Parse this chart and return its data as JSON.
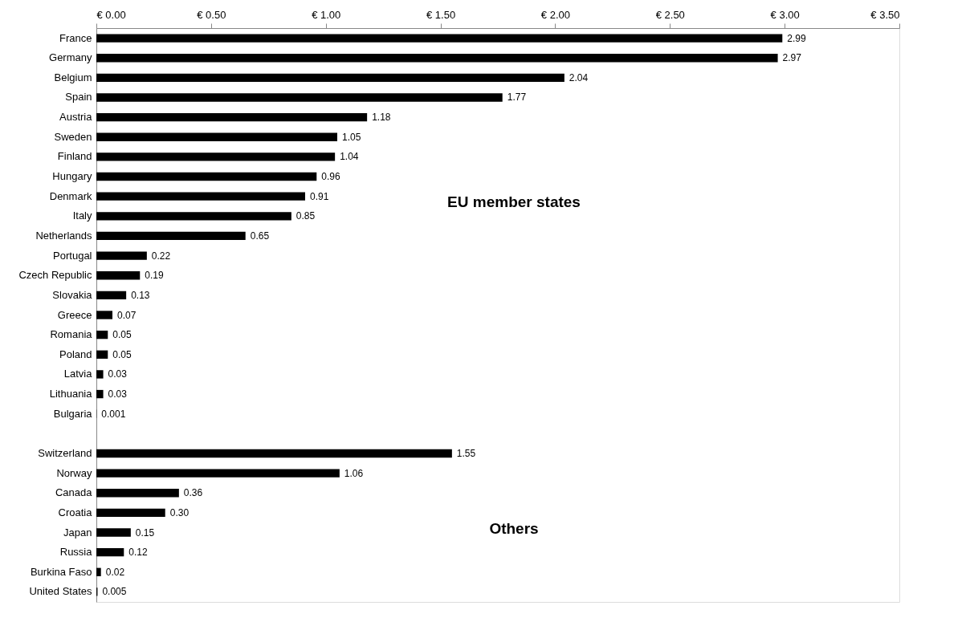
{
  "chart_data": {
    "type": "bar",
    "orientation": "horizontal",
    "categories": [
      "France",
      "Germany",
      "Belgium",
      "Spain",
      "Austria",
      "Sweden",
      "Finland",
      "Hungary",
      "Denmark",
      "Italy",
      "Netherlands",
      "Portugal",
      "Czech Republic",
      "Slovakia",
      "Greece",
      "Romania",
      "Poland",
      "Latvia",
      "Lithuania",
      "Bulgaria",
      null,
      "Switzerland",
      "Norway",
      "Canada",
      "Croatia",
      "Japan",
      "Russia",
      "Burkina Faso",
      "United States"
    ],
    "values": [
      2.99,
      2.97,
      2.04,
      1.77,
      1.18,
      1.05,
      1.04,
      0.96,
      0.91,
      0.85,
      0.65,
      0.22,
      0.19,
      0.13,
      0.07,
      0.05,
      0.05,
      0.03,
      0.03,
      0.001,
      null,
      1.55,
      1.06,
      0.36,
      0.3,
      0.15,
      0.12,
      0.02,
      0.005
    ],
    "value_labels": [
      "2.99",
      "2.97",
      "2.04",
      "1.77",
      "1.18",
      "1.05",
      "1.04",
      "0.96",
      "0.91",
      "0.85",
      "0.65",
      "0.22",
      "0.19",
      "0.13",
      "0.07",
      "0.05",
      "0.05",
      "0.03",
      "0.03",
      "0.001",
      null,
      "1.55",
      "1.06",
      "0.36",
      "0.30",
      "0.15",
      "0.12",
      "0.02",
      "0.005"
    ],
    "color": "#000000",
    "xlim": [
      0,
      3.5
    ],
    "xticks": [
      {
        "value": 0,
        "label": "€ 0.00"
      },
      {
        "value": 0.5,
        "label": "€ 0.50"
      },
      {
        "value": 1,
        "label": "€ 1.00"
      },
      {
        "value": 1.5,
        "label": "€ 1.50"
      },
      {
        "value": 2,
        "label": "€ 2.00"
      },
      {
        "value": 2.5,
        "label": "€ 2.50"
      },
      {
        "value": 3,
        "label": "€ 3.00"
      },
      {
        "value": 3.5,
        "label": "€ 3.50"
      }
    ],
    "grid": false,
    "annotations": [
      "EU member states",
      "Others"
    ]
  }
}
